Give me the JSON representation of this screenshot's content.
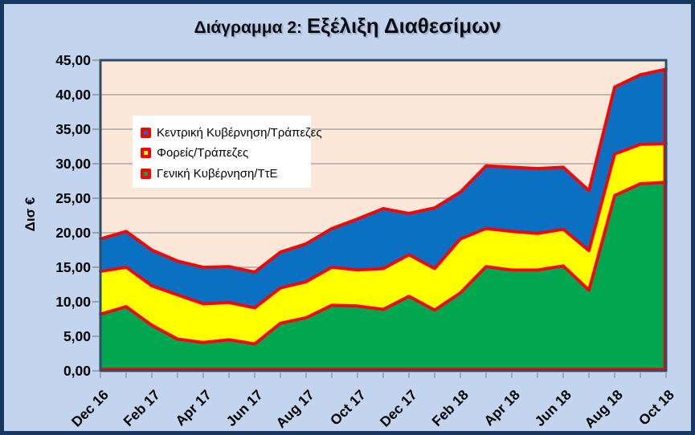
{
  "title": {
    "prefix": "Διάγραμμα 2: ",
    "main": "Εξέλιξη Διαθεσίμων"
  },
  "colors": {
    "background": "#c3d5ee",
    "frame_border": "#17375e",
    "plot_background": "#fbe8d9",
    "plot_border": "#2e4d6b",
    "gridline": "#9b9b9b",
    "tick": "#8f8f8f",
    "label_text": "#000000",
    "series_outline": "#fe0000"
  },
  "chart_data": {
    "type": "area",
    "stacked": true,
    "title": "Διάγραμμα 2: Εξέλιξη Διαθεσίμων",
    "ylabel": "Δισ €",
    "xlabel": "",
    "ylim": [
      0,
      45
    ],
    "grid": true,
    "legend_position": "upper left, inside plot",
    "x": [
      "Dec 16",
      "Jan 17",
      "Feb 17",
      "Mar 17",
      "Apr 17",
      "May 17",
      "Jun 17",
      "Jul 17",
      "Aug 17",
      "Sep 17",
      "Oct 17",
      "Nov 17",
      "Dec 17",
      "Jan 18",
      "Feb 18",
      "Mar 18",
      "Apr 18",
      "May 18",
      "Jun 18",
      "Jul 18",
      "Aug 18",
      "Sep 18",
      "Oct 18"
    ],
    "x_label_step": 2,
    "y_tick_values": [
      0,
      5,
      10,
      15,
      20,
      25,
      30,
      35,
      40,
      45
    ],
    "y_tick_labels": [
      "0,00",
      "5,00",
      "10,00",
      "15,00",
      "20,00",
      "25,00",
      "30,00",
      "35,00",
      "40,00",
      "45,00"
    ],
    "series": [
      {
        "name": "Γενική Κυβέρνηση/ΤτΕ",
        "fill": "#00a750",
        "values": [
          8.2,
          9.3,
          6.6,
          4.6,
          4.1,
          4.5,
          3.9,
          6.9,
          7.7,
          9.5,
          9.4,
          8.9,
          10.8,
          8.8,
          11.3,
          15.1,
          14.6,
          14.6,
          15.2,
          11.7,
          25.4,
          27.1,
          27.3
        ]
      },
      {
        "name": "Φορείς/Τράπεζες",
        "fill": "#ffff00",
        "values": [
          6.2,
          5.7,
          5.7,
          6.4,
          5.6,
          5.4,
          5.2,
          5.1,
          5.2,
          5.5,
          5.2,
          5.9,
          6.0,
          6.0,
          7.8,
          5.5,
          5.6,
          5.3,
          5.3,
          5.7,
          6.0,
          5.7,
          5.6
        ]
      },
      {
        "name": "Κεντρική Κυβέρνηση/Τράπεζες",
        "fill": "#0b70c2",
        "values": [
          4.7,
          5.2,
          5.2,
          4.9,
          5.3,
          5.2,
          5.2,
          5.2,
          5.5,
          5.6,
          7.4,
          8.7,
          6.0,
          8.8,
          6.8,
          9.1,
          9.3,
          9.4,
          9.0,
          8.7,
          9.7,
          10.1,
          10.8
        ]
      }
    ]
  }
}
